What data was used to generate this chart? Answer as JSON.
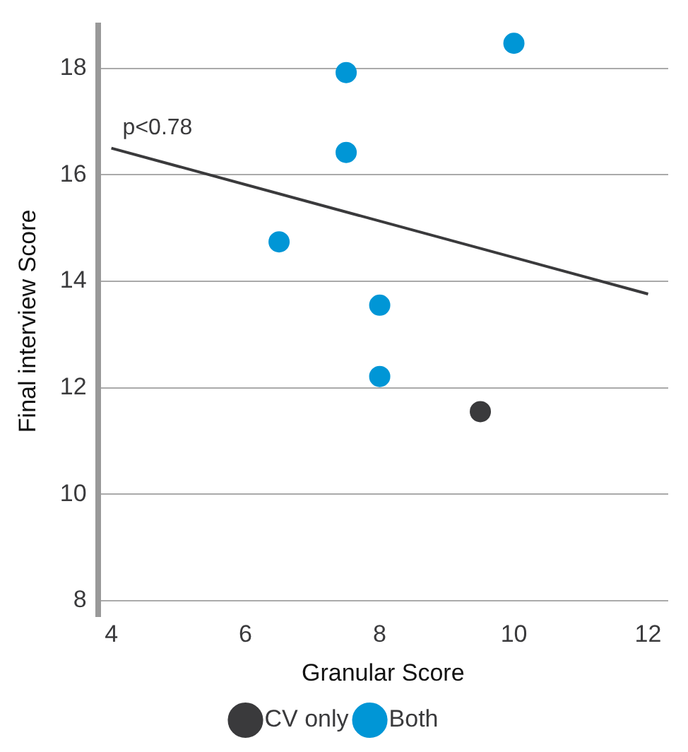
{
  "chart_data": {
    "type": "scatter",
    "xlabel": "Granular Score",
    "ylabel": "Final interview Score",
    "xlim": [
      3.8,
      12.3
    ],
    "xticks": [
      4,
      6,
      8,
      10,
      12
    ],
    "ylim": [
      7.7,
      18.8
    ],
    "yticks": [
      8,
      10,
      12,
      14,
      16,
      18
    ],
    "grid": "y",
    "legend": "bottom",
    "marker": "circle",
    "series": [
      {
        "name": "CV only",
        "color": "#3a3a3c",
        "x": [
          9.5
        ],
        "values": [
          11.55
        ]
      },
      {
        "name": "Both",
        "color": "#0096d6",
        "x": [
          10,
          7.5,
          7.5,
          6.5,
          8,
          8
        ],
        "values": [
          18.47,
          17.92,
          16.42,
          14.74,
          13.55,
          12.21
        ]
      },
      {
        "type": "line",
        "color": "#3a3a3c",
        "x": [
          4,
          12
        ],
        "values": [
          16.5,
          13.76
        ],
        "marker": "none"
      }
    ],
    "annotations": [
      {
        "text": "p<0.78",
        "x": 4,
        "y": 16.5
      }
    ]
  }
}
